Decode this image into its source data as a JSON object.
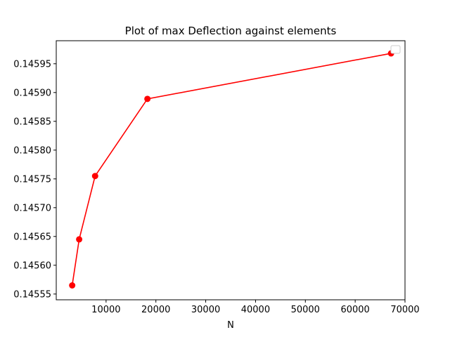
{
  "chart_data": {
    "type": "line",
    "title": "Plot of max Deflection against elements",
    "xlabel": "N",
    "ylabel": "",
    "xlim": [
      0,
      70000
    ],
    "ylim": [
      0.14554,
      0.14599
    ],
    "xticks": [
      10000,
      20000,
      30000,
      40000,
      50000,
      60000,
      70000
    ],
    "xtick_labels": [
      "10000",
      "20000",
      "30000",
      "40000",
      "50000",
      "60000",
      "70000"
    ],
    "yticks": [
      0.14555,
      0.1456,
      0.14565,
      0.1457,
      0.14575,
      0.1458,
      0.14585,
      0.1459,
      0.14595
    ],
    "ytick_labels": [
      "0.14555",
      "0.14560",
      "0.14565",
      "0.14570",
      "0.14575",
      "0.14580",
      "0.14585",
      "0.14590",
      "0.14595"
    ],
    "grid": false,
    "legend": {
      "position": "top-right",
      "entries": []
    },
    "series": [
      {
        "color": "#ff0000",
        "marker": "circle",
        "x": [
          3200,
          4600,
          7800,
          18300,
          67200
        ],
        "y": [
          0.145565,
          0.145645,
          0.145755,
          0.145889,
          0.145968
        ]
      }
    ]
  }
}
